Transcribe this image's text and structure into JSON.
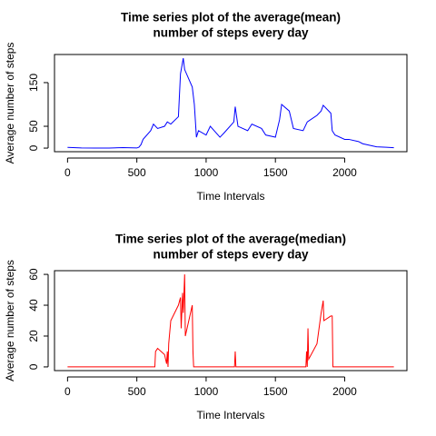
{
  "chart_data": [
    {
      "type": "line",
      "title": [
        "Time series plot of the average(mean)",
        "number of steps every day"
      ],
      "xlabel": "Time Intervals",
      "ylabel": "Average number of steps",
      "xlim": [
        -94.2,
        2449.2
      ],
      "ylim": [
        -8.2,
        214.4
      ],
      "xticks": [
        0,
        500,
        1000,
        1500,
        2000
      ],
      "yticks": [
        0,
        50,
        150
      ],
      "series": [
        {
          "name": "mean",
          "color": "#0000ff",
          "x": [
            0,
            100,
            200,
            300,
            400,
            500,
            515,
            530,
            545,
            600,
            620,
            650,
            700,
            720,
            745,
            800,
            815,
            835,
            845,
            900,
            915,
            930,
            945,
            1000,
            1030,
            1100,
            1130,
            1200,
            1210,
            1230,
            1300,
            1330,
            1400,
            1430,
            1500,
            1530,
            1545,
            1600,
            1630,
            1700,
            1730,
            1800,
            1830,
            1845,
            1900,
            1910,
            1930,
            2000,
            2030,
            2100,
            2130,
            2200,
            2230,
            2300,
            2355
          ],
          "values": [
            1.7,
            0.4,
            0,
            0,
            1.2,
            0.3,
            2,
            8,
            20,
            40,
            55,
            45,
            50,
            60,
            55,
            72,
            170,
            206,
            180,
            140,
            100,
            25,
            40,
            30,
            50,
            25,
            35,
            60,
            95,
            50,
            40,
            55,
            45,
            30,
            25,
            65,
            100,
            85,
            45,
            40,
            60,
            75,
            85,
            98,
            80,
            40,
            30,
            20,
            20,
            15,
            10,
            5,
            3,
            2,
            1
          ]
        }
      ]
    },
    {
      "type": "line",
      "title": [
        "Time series plot of the average(median)",
        "number of steps every day"
      ],
      "xlabel": "Time Intervals",
      "ylabel": "Average number of steps",
      "xlim": [
        -94.2,
        2449.2
      ],
      "ylim": [
        -2.4,
        62.4
      ],
      "xticks": [
        0,
        500,
        1000,
        1500,
        2000
      ],
      "yticks": [
        0,
        20,
        40,
        60
      ],
      "series": [
        {
          "name": "median",
          "color": "#ff0000",
          "x": [
            0,
            630,
            635,
            650,
            700,
            715,
            720,
            725,
            730,
            745,
            800,
            815,
            820,
            830,
            835,
            845,
            850,
            900,
            905,
            910,
            1205,
            1210,
            1215,
            1720,
            1725,
            1730,
            1735,
            1740,
            1800,
            1830,
            1845,
            1850,
            1900,
            1910,
            1915,
            2355
          ],
          "values": [
            0,
            0,
            10,
            12,
            8,
            2,
            10,
            0,
            15,
            30,
            40,
            45,
            25,
            48,
            35,
            60,
            20,
            40,
            10,
            0,
            0,
            10,
            0,
            0,
            10,
            0,
            25,
            5,
            15,
            35,
            43,
            30,
            33,
            33,
            0,
            0
          ]
        }
      ]
    }
  ]
}
